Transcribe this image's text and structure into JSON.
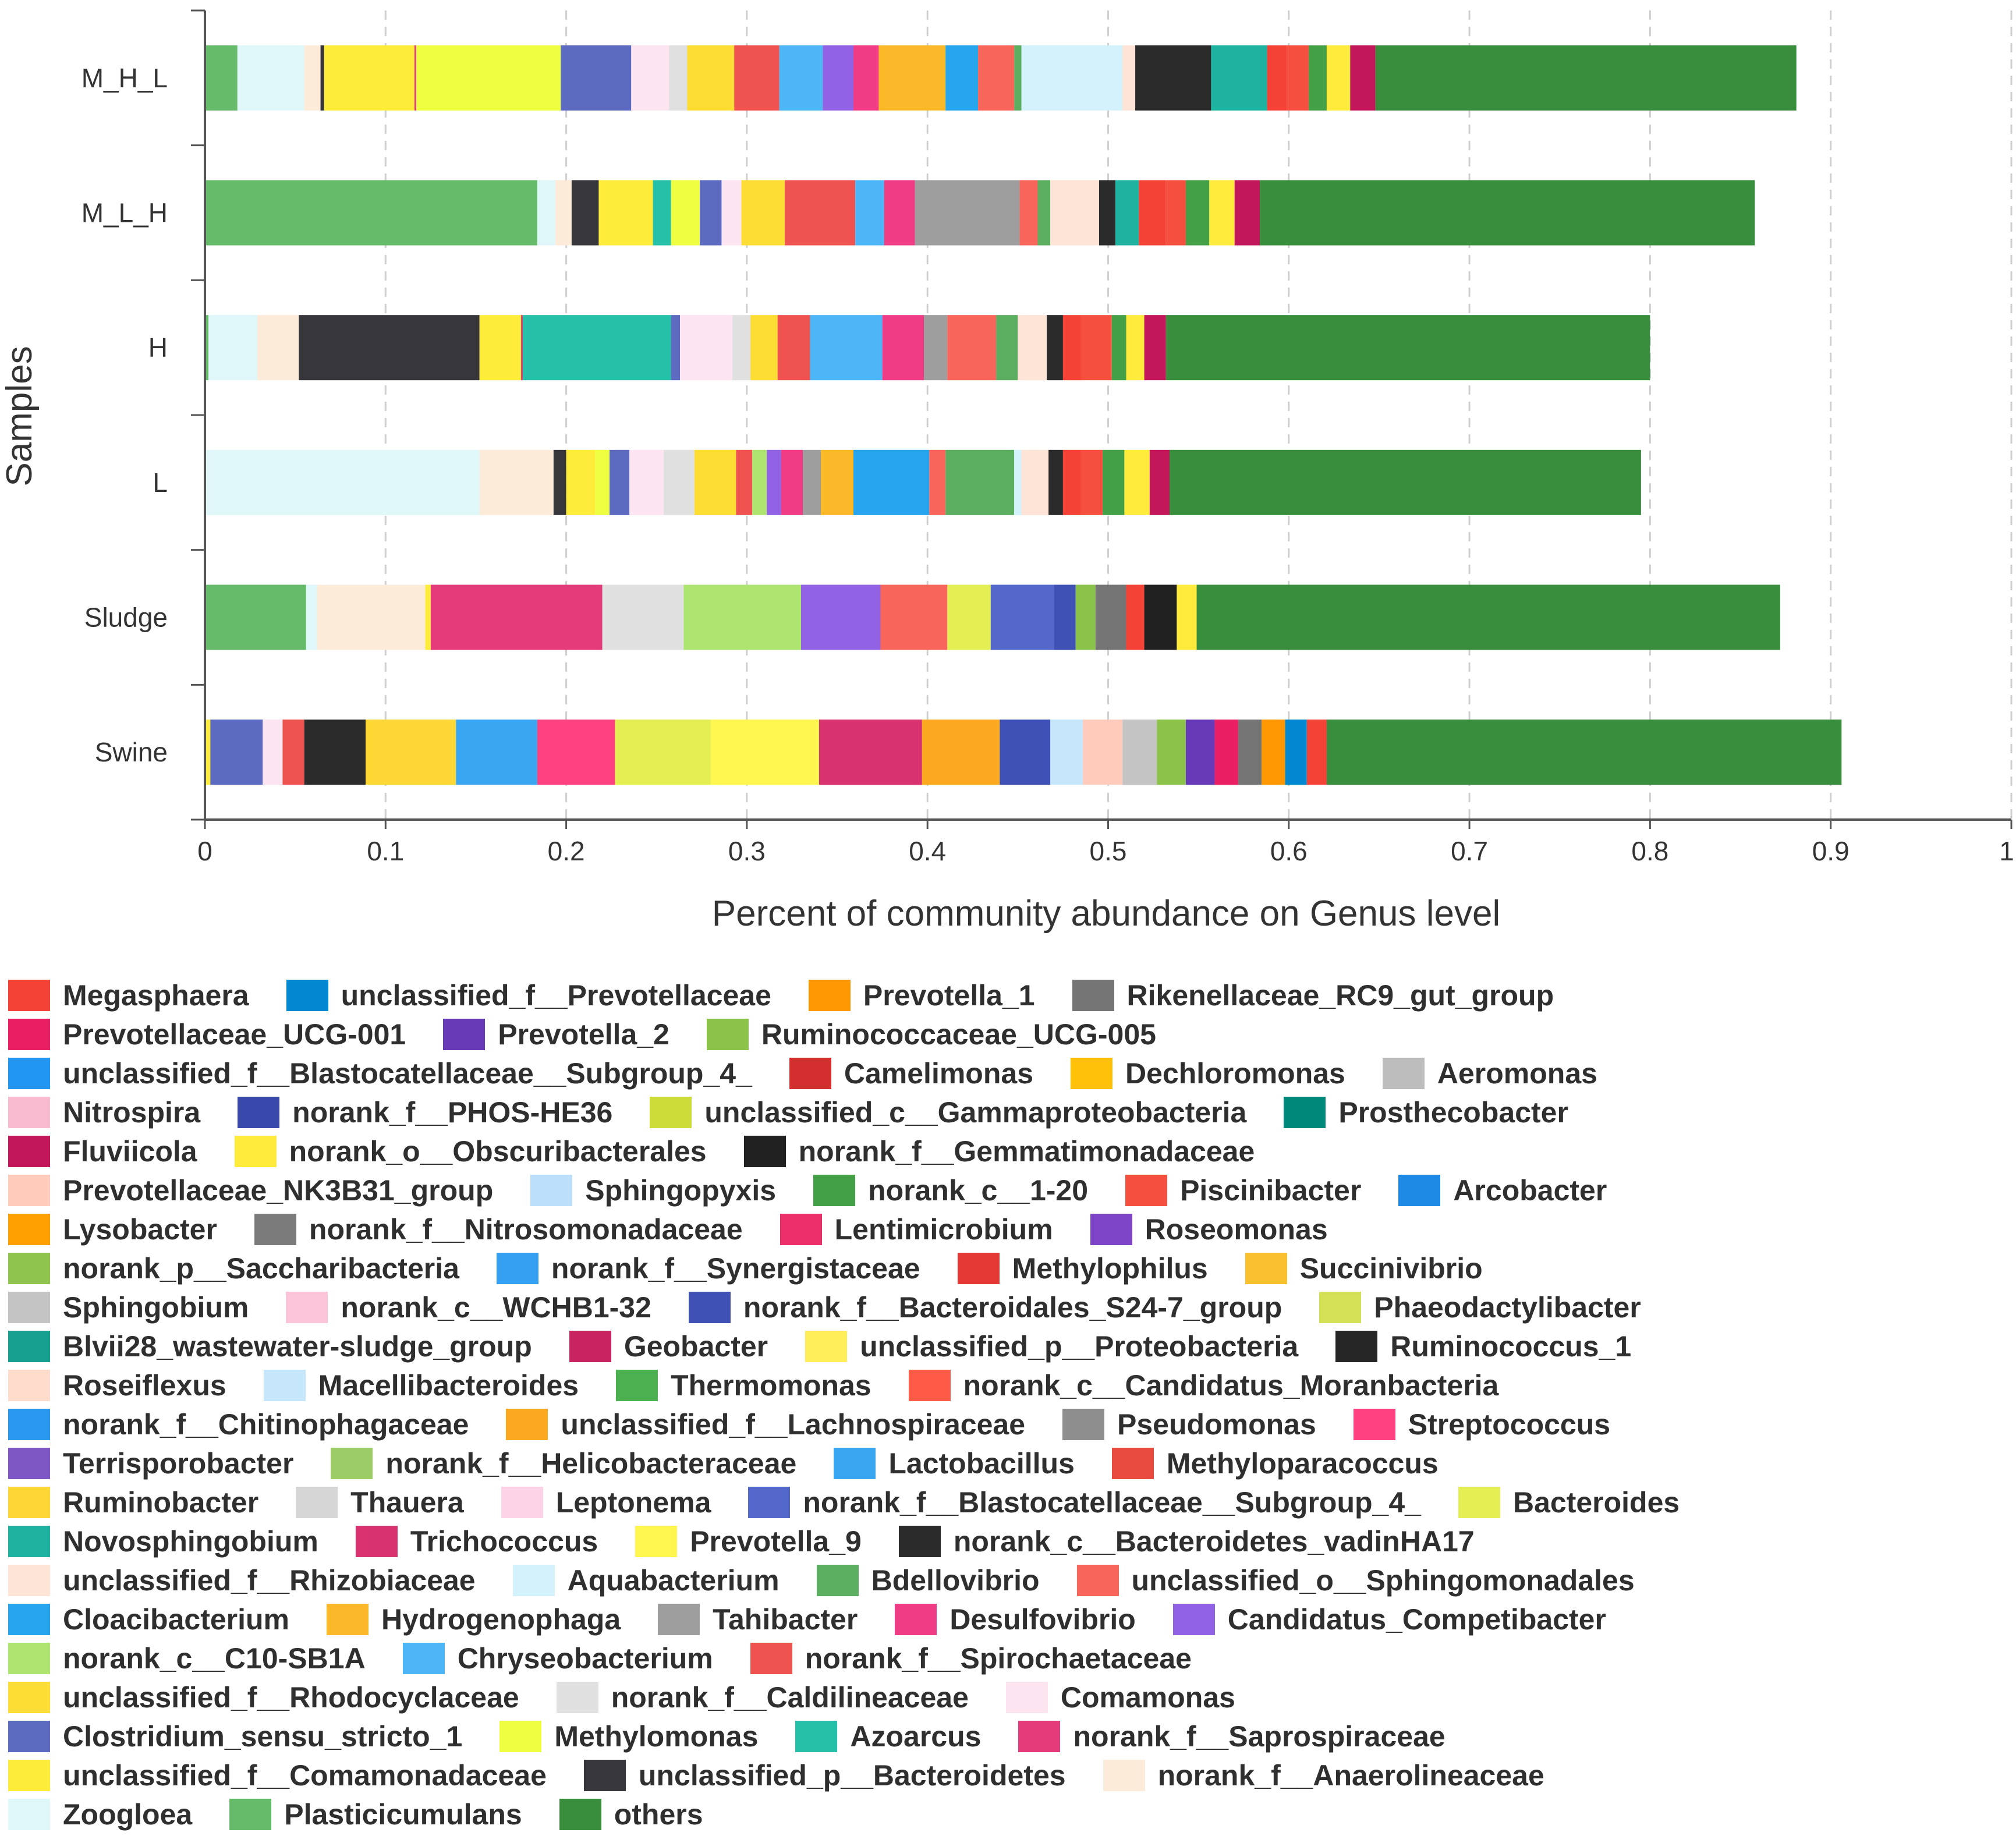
{
  "chart_data": {
    "type": "bar",
    "orientation": "horizontal",
    "stacked": true,
    "xlabel": "Percent of community abundance on Genus level",
    "ylabel": "Samples",
    "xlim": [
      0,
      1
    ],
    "xticks": [
      "0",
      "0.1",
      "0.2",
      "0.3",
      "0.4",
      "0.5",
      "0.6",
      "0.7",
      "0.8",
      "0.9",
      "1"
    ],
    "grid": "vertical dashed",
    "legend_position": "bottom",
    "categories": [
      "M_H_L",
      "M_L_H",
      "H",
      "L",
      "Sludge",
      "Swine"
    ],
    "series": [
      {
        "name": "Plasticicumulans",
        "color": "#66bb6a",
        "values": [
          0.018,
          0.184,
          0.002,
          0.0,
          0.056,
          0.0
        ]
      },
      {
        "name": "Zoogloea",
        "color": "#e0f7fa",
        "values": [
          0.037,
          0.01,
          0.027,
          0.152,
          0.006,
          0.0
        ]
      },
      {
        "name": "norank_f__Anaerolineaceae",
        "color": "#fdebd9",
        "values": [
          0.009,
          0.009,
          0.023,
          0.041,
          0.06,
          0.0
        ]
      },
      {
        "name": "unclassified_p__Bacteroidetes",
        "color": "#37373b",
        "values": [
          0.002,
          0.015,
          0.1,
          0.007,
          0.0,
          0.0
        ]
      },
      {
        "name": "unclassified_f__Comamonadaceae",
        "color": "#feec3b",
        "values": [
          0.05,
          0.03,
          0.023,
          0.016,
          0.003,
          0.003
        ]
      },
      {
        "name": "norank_f__Saprospiraceae",
        "color": "#e53b7a",
        "values": [
          0.001,
          0.0,
          0.001,
          0.0,
          0.095,
          0.0
        ]
      },
      {
        "name": "Azoarcus",
        "color": "#26bfa8",
        "values": [
          0.0,
          0.01,
          0.082,
          0.0,
          0.0,
          0.0
        ]
      },
      {
        "name": "Methylomonas",
        "color": "#eeff41",
        "values": [
          0.08,
          0.016,
          0.0,
          0.008,
          0.0,
          0.0
        ]
      },
      {
        "name": "Clostridium_sensu_stricto_1",
        "color": "#5c6bc0",
        "values": [
          0.039,
          0.012,
          0.005,
          0.011,
          0.0,
          0.029
        ]
      },
      {
        "name": "Comamonas",
        "color": "#fce4f0",
        "values": [
          0.021,
          0.011,
          0.029,
          0.019,
          0.0,
          0.011
        ]
      },
      {
        "name": "norank_f__Caldilineaceae",
        "color": "#e0e0e0",
        "values": [
          0.01,
          0.0,
          0.01,
          0.017,
          0.045,
          0.0
        ]
      },
      {
        "name": "unclassified_f__Rhodocyclaceae",
        "color": "#fddc33",
        "values": [
          0.026,
          0.024,
          0.015,
          0.023,
          0.0,
          0.0
        ]
      },
      {
        "name": "norank_f__Spirochaetaceae",
        "color": "#ef5350",
        "values": [
          0.025,
          0.039,
          0.018,
          0.009,
          0.0,
          0.012
        ]
      },
      {
        "name": "Chryseobacterium",
        "color": "#4db6f6",
        "values": [
          0.024,
          0.016,
          0.04,
          0.0,
          0.0,
          0.0
        ]
      },
      {
        "name": "norank_c__C10-SB1A",
        "color": "#aee571",
        "values": [
          0.0,
          0.0,
          0.0,
          0.008,
          0.065,
          0.0
        ]
      },
      {
        "name": "Candidatus_Competibacter",
        "color": "#9162e4",
        "values": [
          0.017,
          0.0,
          0.0,
          0.008,
          0.044,
          0.0
        ]
      },
      {
        "name": "Desulfovibrio",
        "color": "#f03c85",
        "values": [
          0.014,
          0.017,
          0.023,
          0.012,
          0.0,
          0.0
        ]
      },
      {
        "name": "Tahibacter",
        "color": "#9e9e9e",
        "values": [
          0.0,
          0.058,
          0.013,
          0.01,
          0.0,
          0.0
        ]
      },
      {
        "name": "Hydrogenophaga",
        "color": "#fbb829",
        "values": [
          0.037,
          0.0,
          0.0,
          0.018,
          0.0,
          0.0
        ]
      },
      {
        "name": "Cloacibacterium",
        "color": "#26a4ec",
        "values": [
          0.018,
          0.0,
          0.0,
          0.042,
          0.0,
          0.0
        ]
      },
      {
        "name": "unclassified_o__Sphingomonadales",
        "color": "#f8655b",
        "values": [
          0.02,
          0.01,
          0.027,
          0.009,
          0.037,
          0.0
        ]
      },
      {
        "name": "Bdellovibrio",
        "color": "#5bad5f",
        "values": [
          0.004,
          0.007,
          0.012,
          0.038,
          0.0,
          0.0
        ]
      },
      {
        "name": "Aquabacterium",
        "color": "#d3f2fb",
        "values": [
          0.056,
          0.0,
          0.0,
          0.004,
          0.0,
          0.0
        ]
      },
      {
        "name": "unclassified_f__Rhizobiaceae",
        "color": "#fee4d6",
        "values": [
          0.007,
          0.027,
          0.016,
          0.015,
          0.0,
          0.0
        ]
      },
      {
        "name": "norank_c__Bacteroidetes_vadinHA17",
        "color": "#2b2b2b",
        "values": [
          0.042,
          0.009,
          0.009,
          0.008,
          0.0,
          0.034
        ]
      },
      {
        "name": "Novosphingobium",
        "color": "#1db3a0",
        "values": [
          0.031,
          0.013,
          0.0,
          0.0,
          0.0,
          0.0
        ]
      },
      {
        "name": "Ruminobacter",
        "color": "#fdd835",
        "values": [
          0.0,
          0.0,
          0.0,
          0.0,
          0.0,
          0.05
        ]
      },
      {
        "name": "Lactobacillus",
        "color": "#3aa6f1",
        "values": [
          0.0,
          0.0,
          0.0,
          0.0,
          0.0,
          0.045
        ]
      },
      {
        "name": "Streptococcus",
        "color": "#ff4081",
        "values": [
          0.0,
          0.0,
          0.0,
          0.0,
          0.0,
          0.043
        ]
      },
      {
        "name": "Bacteroides",
        "color": "#e3ef52",
        "values": [
          0.0,
          0.0,
          0.0,
          0.0,
          0.024,
          0.053
        ]
      },
      {
        "name": "Prevotella_9",
        "color": "#fff64f",
        "values": [
          0.0,
          0.0,
          0.0,
          0.0,
          0.0,
          0.06
        ]
      },
      {
        "name": "Trichococcus",
        "color": "#d9336f",
        "values": [
          0.0,
          0.0,
          0.0,
          0.0,
          0.0,
          0.057
        ]
      },
      {
        "name": "unclassified_f__Lachnospiraceae",
        "color": "#fbaa20",
        "values": [
          0.0,
          0.0,
          0.0,
          0.0,
          0.0,
          0.043
        ]
      },
      {
        "name": "norank_f__Blastocatellaceae__Subgroup_4_",
        "color": "#5468cc",
        "values": [
          0.0,
          0.0,
          0.0,
          0.0,
          0.035,
          0.0
        ]
      },
      {
        "name": "norank_f__Bacteroidales_S24-7_group",
        "color": "#3f51b5",
        "values": [
          0.0,
          0.0,
          0.0,
          0.0,
          0.012,
          0.028
        ]
      },
      {
        "name": "Macellibacteroides",
        "color": "#c5e6fb",
        "values": [
          0.0,
          0.0,
          0.0,
          0.0,
          0.0,
          0.018
        ]
      },
      {
        "name": "Prevotellaceae_NK3B31_group",
        "color": "#ffccbc",
        "values": [
          0.0,
          0.0,
          0.0,
          0.0,
          0.0,
          0.022
        ]
      },
      {
        "name": "Sphingobium",
        "color": "#c4c4c4",
        "values": [
          0.0,
          0.0,
          0.0,
          0.0,
          0.0,
          0.019
        ]
      },
      {
        "name": "Ruminococcaceae_UCG-005",
        "color": "#8bc34a",
        "values": [
          0.0,
          0.0,
          0.0,
          0.0,
          0.011,
          0.016
        ]
      },
      {
        "name": "Prevotella_2",
        "color": "#673ab7",
        "values": [
          0.0,
          0.0,
          0.0,
          0.0,
          0.0,
          0.016
        ]
      },
      {
        "name": "Prevotellaceae_UCG-001",
        "color": "#e91e63",
        "values": [
          0.0,
          0.0,
          0.0,
          0.0,
          0.0,
          0.013
        ]
      },
      {
        "name": "Rikenellaceae_RC9_gut_group",
        "color": "#757575",
        "values": [
          0.0,
          0.0,
          0.0,
          0.0,
          0.017,
          0.013
        ]
      },
      {
        "name": "Prevotella_1",
        "color": "#ff9800",
        "values": [
          0.0,
          0.0,
          0.0,
          0.0,
          0.0,
          0.013
        ]
      },
      {
        "name": "unclassified_f__Prevotellaceae",
        "color": "#0288d1",
        "values": [
          0.0,
          0.0,
          0.0,
          0.0,
          0.0,
          0.012
        ]
      },
      {
        "name": "Megasphaera",
        "color": "#f44336",
        "values": [
          0.011,
          0.015,
          0.01,
          0.01,
          0.01,
          0.011
        ]
      },
      {
        "name": "Piscinibacter",
        "color": "#f44f3f",
        "values": [
          0.012,
          0.011,
          0.017,
          0.012,
          0.0,
          0.0
        ]
      },
      {
        "name": "norank_c__1-20",
        "color": "#43a047",
        "values": [
          0.01,
          0.013,
          0.008,
          0.012,
          0.0,
          0.0
        ]
      },
      {
        "name": "norank_f__Gemmatimonadaceae",
        "color": "#212121",
        "values": [
          0.0,
          0.0,
          0.0,
          0.0,
          0.018,
          0.0
        ]
      },
      {
        "name": "norank_o__Obscuribacterales",
        "color": "#ffeb3b",
        "values": [
          0.013,
          0.014,
          0.01,
          0.014,
          0.011,
          0.0
        ]
      },
      {
        "name": "Fluviicola",
        "color": "#c2185b",
        "values": [
          0.014,
          0.014,
          0.012,
          0.011,
          0.0,
          0.0
        ]
      },
      {
        "name": "others",
        "color": "#388e3c",
        "values": [
          0.233,
          0.274,
          0.268,
          0.261,
          0.323,
          0.285
        ]
      }
    ]
  },
  "legend_rows": [
    [
      {
        "label": "Megasphaera",
        "color": "#f44336"
      },
      {
        "label": "unclassified_f__Prevotellaceae",
        "color": "#0288d1"
      },
      {
        "label": "Prevotella_1",
        "color": "#ff9800"
      },
      {
        "label": "Rikenellaceae_RC9_gut_group",
        "color": "#757575"
      }
    ],
    [
      {
        "label": "Prevotellaceae_UCG-001",
        "color": "#e91e63"
      },
      {
        "label": "Prevotella_2",
        "color": "#673ab7"
      },
      {
        "label": "Ruminococcaceae_UCG-005",
        "color": "#8bc34a"
      }
    ],
    [
      {
        "label": "unclassified_f__Blastocatellaceae__Subgroup_4_",
        "color": "#2196f3"
      },
      {
        "label": "Camelimonas",
        "color": "#d32f2f"
      },
      {
        "label": "Dechloromonas",
        "color": "#ffc107"
      },
      {
        "label": "Aeromonas",
        "color": "#bdbdbd"
      }
    ],
    [
      {
        "label": "Nitrospira",
        "color": "#f8bbd0"
      },
      {
        "label": "norank_f__PHOS-HE36",
        "color": "#3949ab"
      },
      {
        "label": "unclassified_c__Gammaproteobacteria",
        "color": "#cddc39"
      },
      {
        "label": "Prosthecobacter",
        "color": "#00897b"
      }
    ],
    [
      {
        "label": "Fluviicola",
        "color": "#c2185b"
      },
      {
        "label": "norank_o__Obscuribacterales",
        "color": "#ffeb3b"
      },
      {
        "label": "norank_f__Gemmatimonadaceae",
        "color": "#212121"
      }
    ],
    [
      {
        "label": "Prevotellaceae_NK3B31_group",
        "color": "#ffccbc"
      },
      {
        "label": "Sphingopyxis",
        "color": "#bbdefb"
      },
      {
        "label": "norank_c__1-20",
        "color": "#43a047"
      },
      {
        "label": "Piscinibacter",
        "color": "#f44f3f"
      },
      {
        "label": "Arcobacter",
        "color": "#1e88e5"
      }
    ],
    [
      {
        "label": "Lysobacter",
        "color": "#ffa000"
      },
      {
        "label": "norank_f__Nitrosomonadaceae",
        "color": "#7b7b7b"
      },
      {
        "label": "Lentimicrobium",
        "color": "#ec2f6a"
      },
      {
        "label": "Roseomonas",
        "color": "#7e44c8"
      }
    ],
    [
      {
        "label": "norank_p__Saccharibacteria",
        "color": "#8fc54f"
      },
      {
        "label": "norank_f__Synergistaceae",
        "color": "#35a0f2"
      },
      {
        "label": "Methylophilus",
        "color": "#e53935"
      },
      {
        "label": "Succinivibrio",
        "color": "#fbc02d"
      }
    ],
    [
      {
        "label": "Sphingobium",
        "color": "#c4c4c4"
      },
      {
        "label": "norank_c__WCHB1-32",
        "color": "#fbc4d8"
      },
      {
        "label": "norank_f__Bacteroidales_S24-7_group",
        "color": "#3f51b5"
      },
      {
        "label": "Phaeodactylibacter",
        "color": "#d4e157"
      }
    ],
    [
      {
        "label": "Blvii28_wastewater-sludge_group",
        "color": "#16a08f"
      },
      {
        "label": "Geobacter",
        "color": "#c8245f"
      },
      {
        "label": "unclassified_p__Proteobacteria",
        "color": "#ffee58"
      },
      {
        "label": "Ruminococcus_1",
        "color": "#262626"
      }
    ],
    [
      {
        "label": "Roseiflexus",
        "color": "#ffdccc"
      },
      {
        "label": "Macellibacteroides",
        "color": "#c5e6fb"
      },
      {
        "label": "Thermomonas",
        "color": "#4caf50"
      },
      {
        "label": "norank_c__Candidatus_Moranbacteria",
        "color": "#ff5a47"
      }
    ],
    [
      {
        "label": "norank_f__Chitinophagaceae",
        "color": "#2899ee"
      },
      {
        "label": "unclassified_f__Lachnospiraceae",
        "color": "#fbaa20"
      },
      {
        "label": "Pseudomonas",
        "color": "#8e8e8e"
      },
      {
        "label": "Streptococcus",
        "color": "#ff4081"
      }
    ],
    [
      {
        "label": "Terrisporobacter",
        "color": "#7e57c2"
      },
      {
        "label": "norank_f__Helicobacteraceae",
        "color": "#9ccc65"
      },
      {
        "label": "Lactobacillus",
        "color": "#3aa6f1"
      },
      {
        "label": "Methyloparacoccus",
        "color": "#e84a3f"
      }
    ],
    [
      {
        "label": "Ruminobacter",
        "color": "#fdd835"
      },
      {
        "label": "Thauera",
        "color": "#d6d6d6"
      },
      {
        "label": "Leptonema",
        "color": "#fcd2e6"
      },
      {
        "label": "norank_f__Blastocatellaceae__Subgroup_4_",
        "color": "#5468cc"
      },
      {
        "label": "Bacteroides",
        "color": "#e3ef52"
      }
    ],
    [
      {
        "label": "Novosphingobium",
        "color": "#1db3a0"
      },
      {
        "label": "Trichococcus",
        "color": "#d9336f"
      },
      {
        "label": "Prevotella_9",
        "color": "#fff64f"
      },
      {
        "label": "norank_c__Bacteroidetes_vadinHA17",
        "color": "#2b2b2b"
      }
    ],
    [
      {
        "label": "unclassified_f__Rhizobiaceae",
        "color": "#fee4d6"
      },
      {
        "label": "Aquabacterium",
        "color": "#d3f2fb"
      },
      {
        "label": "Bdellovibrio",
        "color": "#5bad5f"
      },
      {
        "label": "unclassified_o__Sphingomonadales",
        "color": "#f8655b"
      }
    ],
    [
      {
        "label": "Cloacibacterium",
        "color": "#26a4ec"
      },
      {
        "label": "Hydrogenophaga",
        "color": "#fbb829"
      },
      {
        "label": "Tahibacter",
        "color": "#9e9e9e"
      },
      {
        "label": "Desulfovibrio",
        "color": "#f03c85"
      },
      {
        "label": "Candidatus_Competibacter",
        "color": "#9162e4"
      }
    ],
    [
      {
        "label": "norank_c__C10-SB1A",
        "color": "#aee571"
      },
      {
        "label": "Chryseobacterium",
        "color": "#4db6f6"
      },
      {
        "label": "norank_f__Spirochaetaceae",
        "color": "#ef5350"
      }
    ],
    [
      {
        "label": "unclassified_f__Rhodocyclaceae",
        "color": "#fddc33"
      },
      {
        "label": "norank_f__Caldilineaceae",
        "color": "#e0e0e0"
      },
      {
        "label": "Comamonas",
        "color": "#fce4f0"
      }
    ],
    [
      {
        "label": "Clostridium_sensu_stricto_1",
        "color": "#5c6bc0"
      },
      {
        "label": "Methylomonas",
        "color": "#eeff41"
      },
      {
        "label": "Azoarcus",
        "color": "#26bfa8"
      },
      {
        "label": "norank_f__Saprospiraceae",
        "color": "#e53b7a"
      }
    ],
    [
      {
        "label": "unclassified_f__Comamonadaceae",
        "color": "#feec3b"
      },
      {
        "label": "unclassified_p__Bacteroidetes",
        "color": "#37373b"
      },
      {
        "label": "norank_f__Anaerolineaceae",
        "color": "#fdebd9"
      }
    ],
    [
      {
        "label": "Zoogloea",
        "color": "#e0f7fa"
      },
      {
        "label": "Plasticicumulans",
        "color": "#66bb6a"
      },
      {
        "label": "others",
        "color": "#388e3c"
      }
    ]
  ]
}
